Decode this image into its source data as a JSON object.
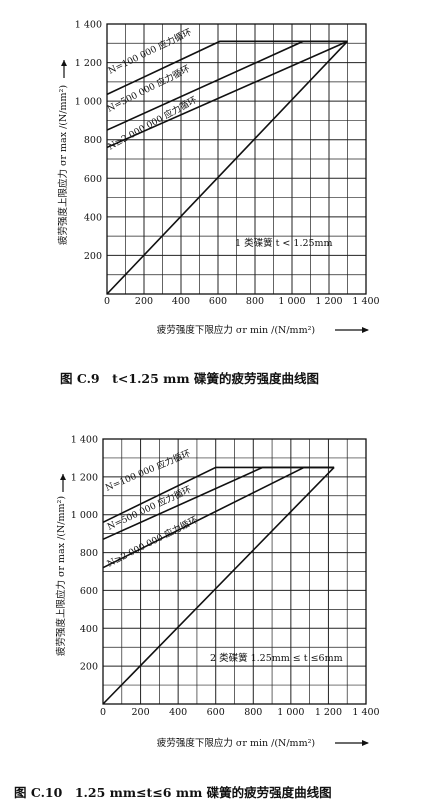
{
  "chart_data": [
    {
      "type": "line",
      "caption": "图 C.9　t<1.25 mm 碟簧的疲劳强度曲线图",
      "ylabel": "疲劳强度上限应力 σr max /(N/mm²)",
      "xlabel": "疲劳强度下限应力 σr min /(N/mm²)",
      "xlim": [
        0,
        1400
      ],
      "ylim": [
        0,
        1400
      ],
      "x_ticks": [
        "0",
        "200",
        "400",
        "600",
        "800",
        "1 000",
        "1 200",
        "1 400"
      ],
      "y_ticks": [
        "200",
        "400",
        "600",
        "800",
        "1 000",
        "1 200",
        "1 400"
      ],
      "note": "1 类碟簧 t < 1.25mm",
      "series": [
        {
          "name": "N=100 000 应力循环",
          "x": [
            0,
            610,
            1300
          ],
          "y": [
            1035,
            1310,
            1310
          ]
        },
        {
          "name": "N=500 000 应力循环",
          "x": [
            0,
            1060,
            1300
          ],
          "y": [
            850,
            1310,
            1310
          ]
        },
        {
          "name": "N≥2 000 000 应力循环",
          "x": [
            0,
            1300
          ],
          "y": [
            760,
            1310
          ]
        },
        {
          "name": "",
          "x": [
            0,
            1300
          ],
          "y": [
            0,
            1310
          ]
        }
      ]
    },
    {
      "type": "line",
      "caption": "图 C.10　1.25 mm≤t≤6 mm 碟簧的疲劳强度曲线图",
      "ylabel": "疲劳强度上限应力 σr max /(N/mm²)",
      "xlabel": "疲劳强度下限应力 σr min /(N/mm²)",
      "xlim": [
        0,
        1400
      ],
      "ylim": [
        0,
        1400
      ],
      "x_ticks": [
        "0",
        "200",
        "400",
        "600",
        "800",
        "1 000",
        "1 200",
        "1 400"
      ],
      "y_ticks": [
        "200",
        "400",
        "600",
        "800",
        "1 000",
        "1 200",
        "1 400"
      ],
      "note": "2 类碟簧 1.25mm ≤ t ≤6mm",
      "series": [
        {
          "name": "N=100 000 应力循环",
          "x": [
            0,
            600,
            1230
          ],
          "y": [
            960,
            1250,
            1250
          ]
        },
        {
          "name": "N=500 000 应力循环",
          "x": [
            0,
            850,
            1230
          ],
          "y": [
            870,
            1250,
            1250
          ]
        },
        {
          "name": "N≥2 000 000 应力循环",
          "x": [
            0,
            1070,
            1230
          ],
          "y": [
            720,
            1250,
            1250
          ]
        },
        {
          "name": "",
          "x": [
            0,
            1230
          ],
          "y": [
            0,
            1250
          ]
        }
      ]
    }
  ]
}
